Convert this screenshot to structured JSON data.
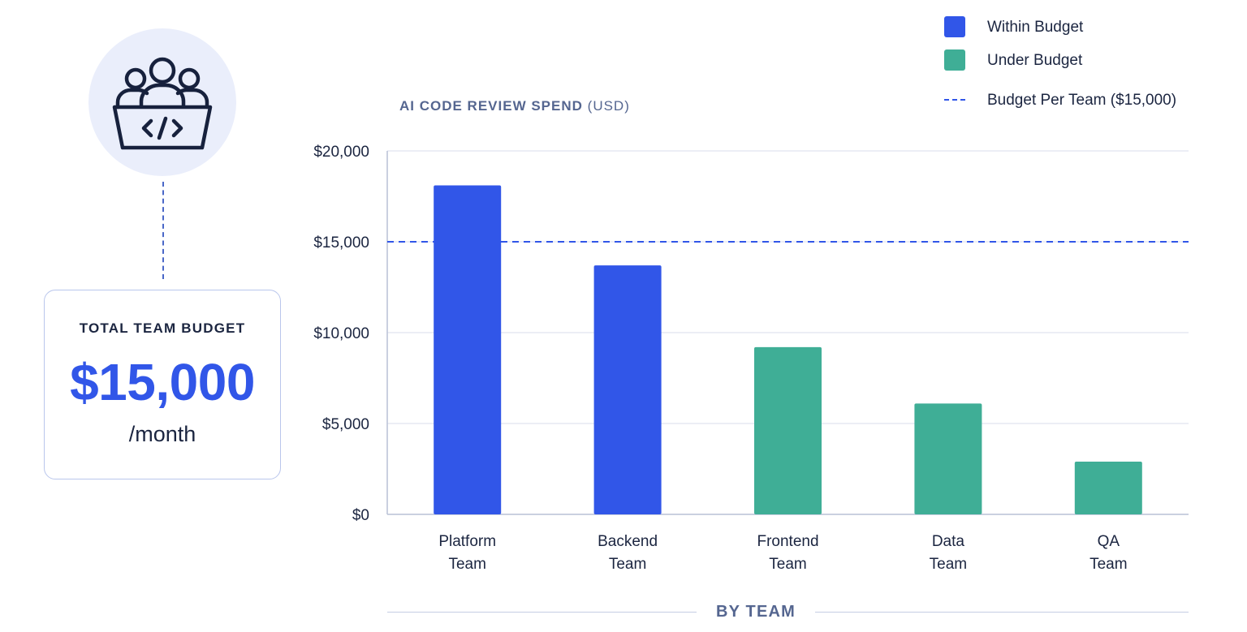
{
  "budget_card": {
    "label": "TOTAL TEAM BUDGET",
    "amount": "$15,000",
    "period": "/month"
  },
  "icon": "team-code-icon",
  "colors": {
    "within_budget": "#3156e8",
    "under_budget": "#3fae96",
    "budget_line": "#3156e8",
    "grid": "#e6e9f2",
    "axis": "#b9c1d6"
  },
  "chart_data": {
    "type": "bar",
    "title_main": "AI CODE REVIEW SPEND",
    "title_unit": "(USD)",
    "xlabel": "BY TEAM",
    "categories": [
      [
        "Platform",
        "Team"
      ],
      [
        "Backend",
        "Team"
      ],
      [
        "Frontend",
        "Team"
      ],
      [
        "Data",
        "Team"
      ],
      [
        "QA",
        "Team"
      ]
    ],
    "values": [
      18100,
      13700,
      9200,
      6100,
      2900
    ],
    "status": [
      "within",
      "within",
      "under",
      "under",
      "under"
    ],
    "ylim": [
      0,
      20000
    ],
    "yticks": [
      0,
      5000,
      10000,
      15000,
      20000
    ],
    "ytick_labels": [
      "$0",
      "$5,000",
      "$10,000",
      "$15,000",
      "$20,000"
    ],
    "budget_line": 15000,
    "grid": true,
    "legend_position": "top-right",
    "legend": {
      "within": "Within Budget",
      "under": "Under Budget",
      "budget": "Budget Per Team ($15,000)"
    }
  }
}
